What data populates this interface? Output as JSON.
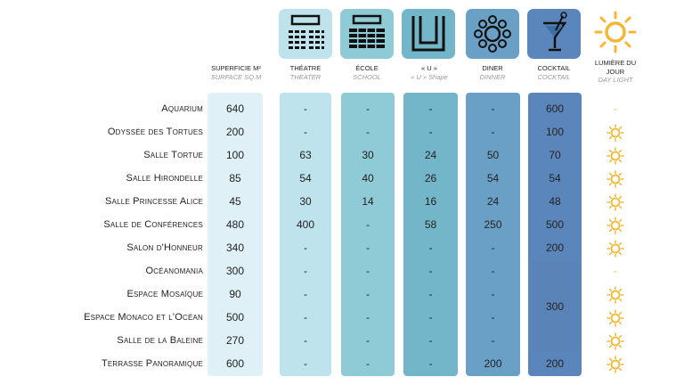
{
  "columns": [
    {
      "id": "surface",
      "fr": "SUPERFICIE M²",
      "en": "SURFACE SQ.M",
      "icon": "none"
    },
    {
      "id": "theatre",
      "fr": "THÉATRE",
      "en": "THEATER",
      "icon": "theater-icon"
    },
    {
      "id": "ecole",
      "fr": "ÉCOLE",
      "en": "SCHOOL",
      "icon": "school-icon"
    },
    {
      "id": "u",
      "fr": "« U »",
      "en": "« U » Shape",
      "icon": "u-shape-icon"
    },
    {
      "id": "diner",
      "fr": "DINER",
      "en": "DINNER",
      "icon": "dinner-icon"
    },
    {
      "id": "cocktail",
      "fr": "COCKTAIL",
      "en": "COCKTAIL",
      "icon": "cocktail-icon"
    },
    {
      "id": "daylight",
      "fr": "LUMIÈRE DU JOUR",
      "en": "DAY LIGHT",
      "icon": "sun-icon"
    }
  ],
  "rows": [
    {
      "name": "Aquarium",
      "surface": "640",
      "theatre": "-",
      "ecole": "-",
      "u": "-",
      "diner": "-",
      "cocktail": "600",
      "daylight": false
    },
    {
      "name": "Odyssée des Tortues",
      "surface": "200",
      "theatre": "-",
      "ecole": "-",
      "u": "-",
      "diner": "-",
      "cocktail": "100",
      "daylight": true
    },
    {
      "name": "Salle Tortue",
      "surface": "100",
      "theatre": "63",
      "ecole": "30",
      "u": "24",
      "diner": "50",
      "cocktail": "70",
      "daylight": true
    },
    {
      "name": "Salle Hirondelle",
      "surface": "85",
      "theatre": "54",
      "ecole": "40",
      "u": "26",
      "diner": "54",
      "cocktail": "54",
      "daylight": true
    },
    {
      "name": "Salle Princesse Alice",
      "surface": "45",
      "theatre": "30",
      "ecole": "14",
      "u": "16",
      "diner": "24",
      "cocktail": "48",
      "daylight": true
    },
    {
      "name": "Salle de Conférences",
      "surface": "480",
      "theatre": "400",
      "ecole": "-",
      "u": "58",
      "diner": "250",
      "cocktail": "500",
      "daylight": true
    },
    {
      "name": "Salon d'Honneur",
      "surface": "340",
      "theatre": "-",
      "ecole": "-",
      "u": "-",
      "diner": "-",
      "cocktail": "200",
      "daylight": true
    },
    {
      "name": "Océanomania",
      "surface": "300",
      "theatre": "-",
      "ecole": "-",
      "u": "-",
      "diner": "-",
      "cocktail": "",
      "daylight": false
    },
    {
      "name": "Espace Mosaïque",
      "surface": "90",
      "theatre": "-",
      "ecole": "-",
      "u": "-",
      "diner": "-",
      "cocktail": "",
      "daylight": true
    },
    {
      "name": "Espace Monaco et l'Océan",
      "surface": "500",
      "theatre": "-",
      "ecole": "-",
      "u": "-",
      "diner": "-",
      "cocktail": "",
      "daylight": true
    },
    {
      "name": "Salle de la Baleine",
      "surface": "270",
      "theatre": "-",
      "ecole": "-",
      "u": "-",
      "diner": "-",
      "cocktail": "",
      "daylight": true
    },
    {
      "name": "Terrasse Panoramique",
      "surface": "600",
      "theatre": "-",
      "ecole": "-",
      "u": "-",
      "diner": "200",
      "cocktail": "200",
      "daylight": true
    }
  ],
  "merged_cocktail": "300",
  "no_daylight_mark": "-",
  "colors": {
    "surface": "#dff1f7",
    "theatre": "#bfe3ec",
    "ecole": "#8fcbd6",
    "u": "#74b6c9",
    "diner": "#6aa0c6",
    "cocktail": "#5b86bb",
    "sun": "#f5b731"
  }
}
